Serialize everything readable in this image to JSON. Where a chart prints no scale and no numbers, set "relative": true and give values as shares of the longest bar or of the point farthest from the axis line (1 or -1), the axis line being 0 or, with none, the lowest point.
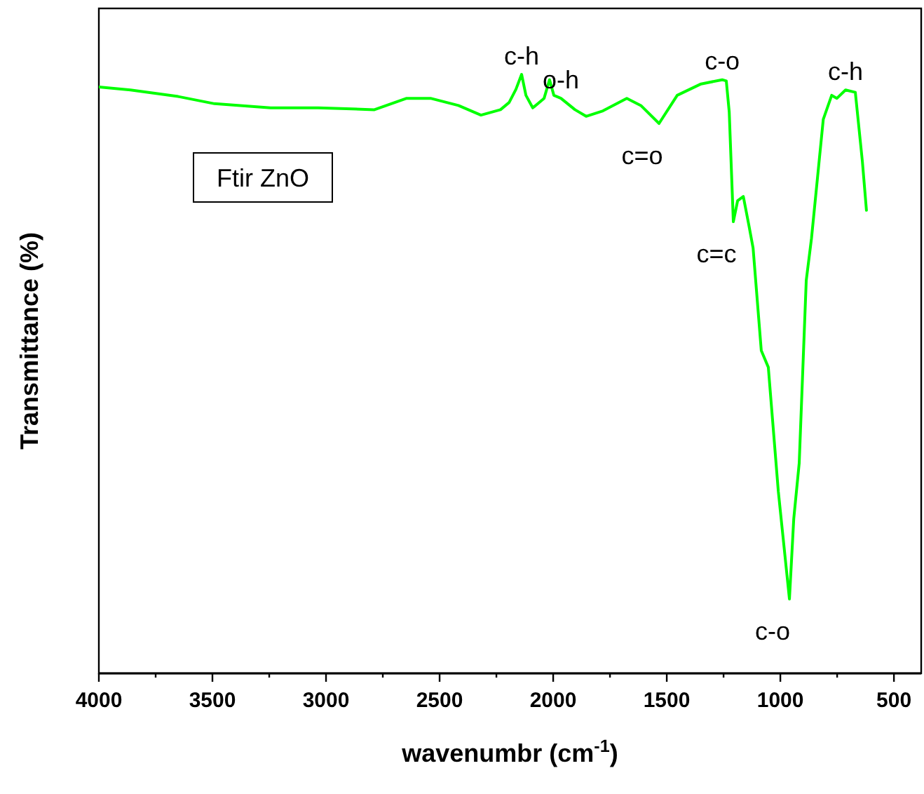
{
  "chart_data": {
    "type": "line",
    "relative": true,
    "xlabel": "wavenumbr (cm$^{-1}$)",
    "ylabel": "Transmittance (%)",
    "xlim": [
      4000,
      380
    ],
    "xticks": [
      4000,
      {
        "value": 3750,
        "label": null
      },
      3500,
      {
        "value": 3250,
        "label": null
      },
      3000,
      {
        "value": 2750,
        "label": null
      },
      2500,
      {
        "value": 2250,
        "label": null
      },
      2000,
      {
        "value": 1750,
        "label": null
      },
      1500,
      {
        "value": 1250,
        "label": null
      },
      1000,
      {
        "value": 750,
        "label": null
      },
      500
    ],
    "series": [
      {
        "color": "#00ff00",
        "x": [
          4000,
          3861,
          3651,
          3491,
          3244,
          3034,
          2787,
          2645,
          2540,
          2417,
          2318,
          2232,
          2194,
          2164,
          2139,
          2120,
          2090,
          2040,
          2016,
          1997,
          1966,
          1904,
          1855,
          1781,
          1676,
          1614,
          1534,
          1454,
          1349,
          1256,
          1238,
          1225,
          1207,
          1188,
          1163,
          1139,
          1120,
          1084,
          1053,
          1009,
          960,
          941,
          917,
          886,
          863,
          811,
          774,
          751,
          713,
          670,
          639,
          621
        ],
        "values": [
          0.979,
          0.974,
          0.963,
          0.951,
          0.944,
          0.944,
          0.941,
          0.96,
          0.96,
          0.948,
          0.932,
          0.941,
          0.953,
          0.975,
          1,
          0.965,
          0.944,
          0.96,
          0.991,
          0.965,
          0.96,
          0.941,
          0.93,
          0.939,
          0.96,
          0.948,
          0.918,
          0.965,
          0.984,
          0.991,
          0.989,
          0.937,
          0.754,
          0.789,
          0.796,
          0.749,
          0.71,
          0.539,
          0.511,
          0.304,
          0.124,
          0.258,
          0.351,
          0.656,
          0.726,
          0.925,
          0.965,
          0.96,
          0.974,
          0.97,
          0.855,
          0.773
        ]
      }
    ],
    "annotations": [
      "Ftir ZnO",
      {
        "text": "c-h",
        "x": 2139,
        "y": 1
      },
      {
        "text": "o-h",
        "x": 1966,
        "y": 0.96
      },
      {
        "text": "c=o",
        "x": 1534,
        "y": 0.918
      },
      {
        "text": "c-o",
        "x": 1256,
        "y": 0.991
      },
      {
        "text": "c=c",
        "x": 1207,
        "y": 0.754
      },
      {
        "text": "c-o",
        "x": 960,
        "y": 0.124
      },
      {
        "text": "c-h",
        "x": 713,
        "y": 0.974
      }
    ]
  }
}
